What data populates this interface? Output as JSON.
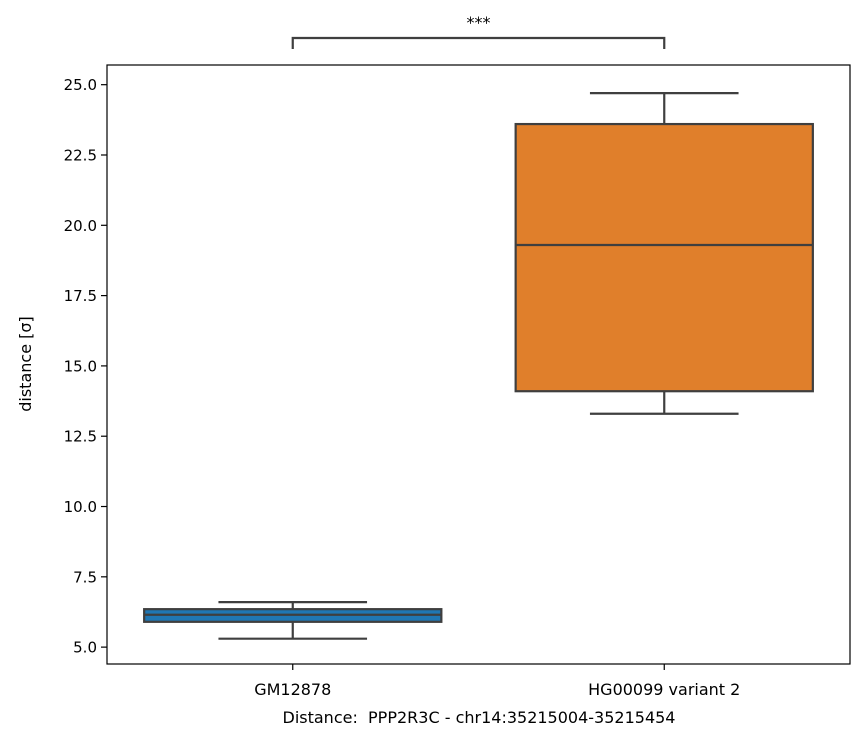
{
  "chart_data": {
    "type": "box",
    "xlabel": "Distance:  PPP2R3C - chr14:35215004-35215454",
    "ylabel": "distance [σ]",
    "ylim": [
      4.4,
      25.7
    ],
    "yticks": [
      5.0,
      7.5,
      10.0,
      12.5,
      15.0,
      17.5,
      20.0,
      22.5,
      25.0
    ],
    "ytick_labels": [
      "5.0",
      "7.5",
      "10.0",
      "12.5",
      "15.0",
      "17.5",
      "20.0",
      "22.5",
      "25.0"
    ],
    "categories": [
      "GM12878",
      "HG00099 variant 2"
    ],
    "boxes": [
      {
        "category": "GM12878",
        "whisker_low": 5.3,
        "q1": 5.9,
        "median": 6.15,
        "q3": 6.35,
        "whisker_high": 6.6,
        "color": "#1f77b4"
      },
      {
        "category": "HG00099 variant 2",
        "whisker_low": 13.3,
        "q1": 14.1,
        "median": 19.3,
        "q3": 23.6,
        "whisker_high": 24.7,
        "color": "#e07f2b"
      }
    ],
    "annotation": {
      "text": "***",
      "from": "GM12878",
      "to": "HG00099 variant 2"
    },
    "grid": false,
    "line_color": "#3f3f3f"
  }
}
